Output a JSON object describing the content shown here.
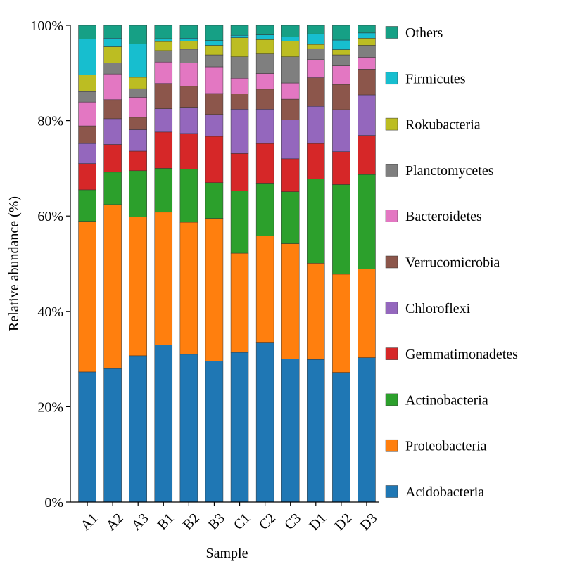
{
  "chart_data": {
    "type": "bar",
    "stacked": true,
    "xlabel": "Sample",
    "ylabel": "Relative abundance (%)",
    "ylim": [
      0,
      100
    ],
    "yticks": [
      "0%",
      "20%",
      "40%",
      "60%",
      "80%",
      "100%"
    ],
    "grid": false,
    "legend_position": "right",
    "categories": [
      "A1",
      "A2",
      "A3",
      "B1",
      "B2",
      "B3",
      "C1",
      "C2",
      "C3",
      "D1",
      "D2",
      "D3"
    ],
    "series": [
      {
        "name": "Acidobacteria",
        "color": "#1f77b4",
        "values": [
          27.3,
          28.0,
          30.7,
          33.0,
          31.0,
          29.6,
          31.4,
          33.4,
          30.0,
          29.9,
          27.2,
          30.3
        ]
      },
      {
        "name": "Proteobacteria",
        "color": "#ff7f0e",
        "values": [
          31.6,
          34.4,
          29.1,
          27.8,
          27.7,
          29.9,
          20.8,
          22.4,
          24.2,
          20.2,
          20.6,
          18.6
        ]
      },
      {
        "name": "Actinobacteria",
        "color": "#2ca02c",
        "values": [
          6.6,
          6.8,
          9.7,
          9.2,
          11.1,
          7.5,
          13.1,
          11.1,
          10.9,
          17.7,
          18.8,
          19.8
        ]
      },
      {
        "name": "Gemmatimonadetes",
        "color": "#d62728",
        "values": [
          5.5,
          5.8,
          4.1,
          7.6,
          7.5,
          9.7,
          7.8,
          8.3,
          6.9,
          7.4,
          6.9,
          8.2
        ]
      },
      {
        "name": "Chloroflexi",
        "color": "#9467bd",
        "values": [
          4.2,
          5.4,
          4.5,
          4.9,
          5.5,
          4.6,
          9.3,
          7.2,
          8.2,
          7.8,
          8.8,
          8.5
        ]
      },
      {
        "name": "Verrucomicrobia",
        "color": "#8c564b",
        "values": [
          3.7,
          4.0,
          2.6,
          5.3,
          4.4,
          4.4,
          3.2,
          4.2,
          4.3,
          6.0,
          5.3,
          5.4
        ]
      },
      {
        "name": "Bacteroidetes",
        "color": "#e377c2",
        "values": [
          5.0,
          5.4,
          4.2,
          4.5,
          4.9,
          5.6,
          3.3,
          3.3,
          3.4,
          3.8,
          3.9,
          2.5
        ]
      },
      {
        "name": "Planctomycetes",
        "color": "#7f7f7f",
        "values": [
          2.2,
          2.3,
          1.8,
          2.4,
          2.9,
          2.5,
          4.5,
          4.1,
          5.5,
          2.3,
          2.3,
          2.5
        ]
      },
      {
        "name": "Rokubacteria",
        "color": "#bcbd22",
        "values": [
          3.5,
          3.4,
          2.4,
          1.9,
          1.7,
          2.0,
          4.0,
          3.0,
          3.3,
          0.9,
          1.1,
          1.5
        ]
      },
      {
        "name": "Firmicutes",
        "color": "#17becf",
        "values": [
          7.5,
          1.8,
          7.0,
          0.6,
          0.6,
          1.0,
          0.5,
          1.0,
          0.9,
          2.2,
          2.0,
          1.1
        ]
      },
      {
        "name": "Others",
        "color": "#16a085",
        "values": [
          2.9,
          2.7,
          3.9,
          2.8,
          2.7,
          3.2,
          2.1,
          2.0,
          2.4,
          1.8,
          3.1,
          1.6
        ]
      }
    ]
  }
}
